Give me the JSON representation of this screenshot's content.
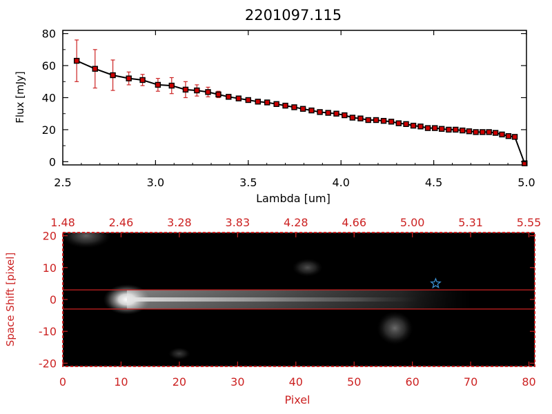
{
  "chart_data": [
    {
      "type": "line",
      "title": "2201097.115",
      "xlabel": "Lambda [um]",
      "ylabel": "Flux [mJy]",
      "xlim": [
        2.5,
        5.0
      ],
      "ylim": [
        -2,
        82
      ],
      "xticks": [
        "2.5",
        "3.0",
        "3.5",
        "4.0",
        "4.5",
        "5.0"
      ],
      "xtick_values": [
        2.5,
        3.0,
        3.5,
        4.0,
        4.5,
        5.0
      ],
      "yticks": [
        "0",
        "20",
        "40",
        "60",
        "80"
      ],
      "ytick_values": [
        0,
        20,
        40,
        60,
        80
      ],
      "grid": false,
      "colors": {
        "line": "#000000",
        "marker_fill": "#cc0000",
        "marker_edge": "#000000",
        "errorbar": "#cc2222"
      },
      "series": [
        {
          "x": [
            2.575,
            2.674,
            2.77,
            2.856,
            2.93,
            3.013,
            3.087,
            3.162,
            3.223,
            3.283,
            3.339,
            3.394,
            3.448,
            3.5,
            3.552,
            3.602,
            3.652,
            3.7,
            3.748,
            3.795,
            3.841,
            3.886,
            3.931,
            3.975,
            4.019,
            4.062,
            4.105,
            4.147,
            4.189,
            4.23,
            4.271,
            4.311,
            4.351,
            4.39,
            4.429,
            4.468,
            4.506,
            4.543,
            4.581,
            4.618,
            4.655,
            4.691,
            4.727,
            4.763,
            4.798,
            4.833,
            4.868,
            4.903,
            4.937,
            4.99
          ],
          "y": [
            63,
            58,
            54,
            52,
            51,
            48,
            47.5,
            45,
            44.5,
            43.5,
            42,
            40.5,
            39.5,
            38.5,
            37.5,
            37,
            36,
            35,
            34,
            33,
            32,
            31,
            30.5,
            30,
            29,
            27.5,
            27,
            26,
            26,
            25.5,
            25,
            24,
            23.5,
            22.5,
            22,
            21,
            21,
            20.5,
            20,
            20,
            19.5,
            19,
            18.5,
            18.5,
            18.5,
            18,
            17,
            16,
            15.5,
            -1
          ],
          "yerr": [
            13,
            12,
            9.5,
            4,
            3.5,
            4,
            5,
            5,
            3.5,
            3,
            2,
            1.5,
            1.2,
            1,
            1,
            1,
            1,
            0.9,
            0.8,
            0.8,
            0.8,
            0.8,
            0.7,
            0.7,
            0.7,
            0.7,
            0.7,
            0.7,
            0.7,
            0.7,
            0.7,
            0.7,
            0.7,
            0.7,
            0.7,
            0.7,
            0.7,
            0.7,
            0.7,
            0.7,
            0.7,
            0.7,
            0.7,
            0.7,
            0.7,
            0.7,
            0.7,
            0.7,
            0.7,
            0.7
          ]
        }
      ]
    },
    {
      "type": "heatmap",
      "xlabel": "Pixel",
      "ylabel": "Space Shift [pixel]",
      "xlim": [
        0,
        81
      ],
      "ylim": [
        -21,
        21
      ],
      "xticks": [
        "0",
        "10",
        "20",
        "30",
        "40",
        "50",
        "60",
        "70",
        "80"
      ],
      "xtick_values": [
        0,
        10,
        20,
        30,
        40,
        50,
        60,
        70,
        80
      ],
      "yticks": [
        "20",
        "10",
        "0",
        "-10",
        "-20"
      ],
      "ytick_values": [
        20,
        10,
        0,
        -10,
        -20
      ],
      "top_axis_ticks": [
        "1.48",
        "2.46",
        "3.28",
        "3.83",
        "4.28",
        "4.66",
        "5.00",
        "5.31",
        "5.55"
      ],
      "grid": false,
      "colors": {
        "axes": "#cc2222",
        "background": "#000000",
        "band_lines": "#cc2222",
        "star_marker": "#3a8fd0"
      },
      "aperture_lines_y": [
        3,
        -3
      ],
      "star_marker": {
        "x": 64,
        "y": 5
      },
      "sources": [
        {
          "name": "main-trace",
          "x": 11,
          "y": 0,
          "peak": 1.0
        },
        {
          "name": "trace-tail",
          "x0": 11,
          "x1": 70,
          "y": 0,
          "peak": 0.55
        },
        {
          "name": "top-left-blob",
          "x": 4,
          "y": 20,
          "peak": 0.55
        },
        {
          "name": "mid-blob",
          "x": 42,
          "y": 10,
          "peak": 0.45
        },
        {
          "name": "lower-right-blob",
          "x": 57,
          "y": -9,
          "peak": 0.6
        },
        {
          "name": "bottom-blob",
          "x": 20,
          "y": -17,
          "peak": 0.35
        }
      ]
    }
  ]
}
